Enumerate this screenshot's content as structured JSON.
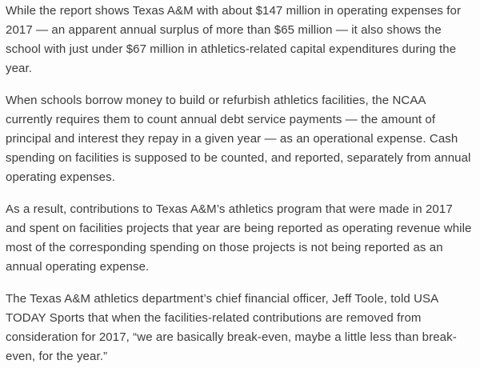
{
  "article": {
    "paragraphs": [
      "While the report shows Texas A&M with about $147 million in operating expenses for\n2017 — an apparent annual surplus of more than $65 million — it also shows the\nschool with just under $67 million in athletics-related capital expenditures during the\nyear.",
      "When schools borrow money to build or refurbish athletics facilities, the NCAA\ncurrently requires them to count annual debt service payments — the amount of\nprincipal and interest they repay in a given year — as an operational expense. Cash\nspending on facilities is supposed to be counted, and reported, separately from annual\noperating expenses.",
      "As a result, contributions to Texas A&M’s athletics program that were made in 2017\nand spent on facilities projects that year are being reported as operating revenue while\nmost of the corresponding spending on those projects is not being reported as an\nannual operating expense.",
      "The Texas A&M athletics department’s chief financial officer, Jeff Toole, told USA\nTODAY Sports that when the facilities-related contributions are removed from\nconsideration for 2017, “we are basically break-even, maybe a little less than break-\neven, for the year.”"
    ]
  }
}
